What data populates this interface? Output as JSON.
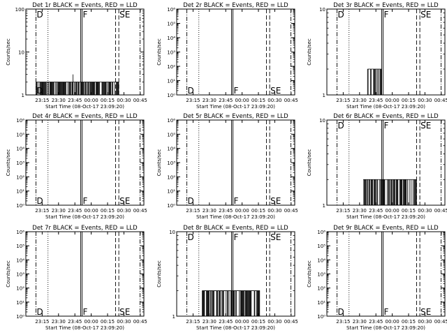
{
  "figure": {
    "start_time_label": "Start Time (08-Oct-17 23:09:20)",
    "y_axis_label": "Counts/sec"
  },
  "chart_data": [
    {
      "id": "det-1r",
      "type": "line",
      "title": "Det 1r BLACK = Events, RED = LLD",
      "yscale": "log",
      "ylim": [
        1,
        100
      ],
      "yticks": [
        {
          "v": 1,
          "l": "1"
        },
        {
          "v": 10,
          "l": "10"
        },
        {
          "v": 100,
          "l": "100"
        }
      ],
      "xticks": [
        "23:15",
        "23:30",
        "23:45",
        "00:00",
        "00:15",
        "00:30",
        "00:45"
      ],
      "xlim_minutes": [
        -9.33,
        99
      ],
      "markers": [
        {
          "t": 0,
          "style": "dash-dot",
          "label": "D",
          "label_pos": "both"
        },
        {
          "t": 11,
          "style": "dotted"
        },
        {
          "t": 41,
          "style": "solid"
        },
        {
          "t": 42.3,
          "style": "solid",
          "label": "F",
          "label_pos": "top"
        },
        {
          "t": 73,
          "style": "dashed"
        },
        {
          "t": 76,
          "style": "dashed",
          "label": "SE",
          "label_pos": "top"
        },
        {
          "t": 95.5,
          "style": "dash-dot"
        }
      ],
      "events": {
        "t_start": 0,
        "t_end": 76,
        "value": 2,
        "spikes": [
          {
            "t": 34,
            "v": 3
          }
        ]
      }
    },
    {
      "id": "det-2r",
      "type": "line",
      "title": "Det 2r BLACK = Events, RED = LLD",
      "yscale": "log",
      "ylim": [
        1,
        1000000
      ],
      "yticks": [
        {
          "v": 1,
          "l": "10⁰"
        },
        {
          "v": 10,
          "l": "10¹"
        },
        {
          "v": 100,
          "l": "10²"
        },
        {
          "v": 1000,
          "l": "10³"
        },
        {
          "v": 10000,
          "l": "10⁴"
        },
        {
          "v": 100000,
          "l": "10⁵"
        },
        {
          "v": 1000000,
          "l": "10⁶"
        }
      ],
      "xticks": [
        "23:15",
        "23:30",
        "23:45",
        "00:00",
        "00:15",
        "00:30",
        "00:45"
      ],
      "xlim_minutes": [
        -9.33,
        99
      ],
      "markers": [
        {
          "t": 0,
          "style": "dash-dot",
          "label": "D",
          "label_pos": "bottom"
        },
        {
          "t": 11,
          "style": "dotted"
        },
        {
          "t": 41,
          "style": "solid"
        },
        {
          "t": 42.3,
          "style": "solid",
          "label": "F",
          "label_pos": "bottom"
        },
        {
          "t": 73,
          "style": "dashed"
        },
        {
          "t": 76,
          "style": "dashed",
          "label": "SE",
          "label_pos": "bottom"
        },
        {
          "t": 95.5,
          "style": "dash-dot"
        }
      ]
    },
    {
      "id": "det-3r",
      "type": "line",
      "title": "Det 3r BLACK = Events, RED = LLD",
      "yscale": "log",
      "ylim": [
        1,
        10
      ],
      "yticks": [
        {
          "v": 1,
          "l": "1"
        },
        {
          "v": 10,
          "l": "10"
        }
      ],
      "xticks": [
        "23:15",
        "23:30",
        "23:45",
        "00:00",
        "00:15",
        "00:30",
        "00:45"
      ],
      "xlim_minutes": [
        -9.33,
        99
      ],
      "markers": [
        {
          "t": 0,
          "style": "dash-dot",
          "label": "D",
          "label_pos": "top"
        },
        {
          "t": 11,
          "style": "dotted"
        },
        {
          "t": 41,
          "style": "solid"
        },
        {
          "t": 42.3,
          "style": "solid",
          "label": "F",
          "label_pos": "top"
        },
        {
          "t": 73,
          "style": "dashed"
        },
        {
          "t": 76,
          "style": "dashed",
          "label": "SE",
          "label_pos": "top"
        },
        {
          "t": 95.5,
          "style": "dash-dot"
        }
      ],
      "events": {
        "t_start": 28,
        "t_end": 41,
        "value": 2,
        "spikes": []
      }
    },
    {
      "id": "det-4r",
      "type": "line",
      "title": "Det 4r BLACK = Events, RED = LLD",
      "yscale": "log",
      "ylim": [
        1,
        1000000
      ],
      "yticks": [
        {
          "v": 1,
          "l": "10⁰"
        },
        {
          "v": 10,
          "l": "10¹"
        },
        {
          "v": 100,
          "l": "10²"
        },
        {
          "v": 1000,
          "l": "10³"
        },
        {
          "v": 10000,
          "l": "10⁴"
        },
        {
          "v": 100000,
          "l": "10⁵"
        },
        {
          "v": 1000000,
          "l": "10⁶"
        }
      ],
      "xticks": [
        "23:15",
        "23:30",
        "23:45",
        "00:00",
        "00:15",
        "00:30",
        "00:45"
      ],
      "xlim_minutes": [
        -9.33,
        99
      ],
      "markers": [
        {
          "t": 0,
          "style": "dash-dot",
          "label": "D",
          "label_pos": "bottom"
        },
        {
          "t": 11,
          "style": "dotted"
        },
        {
          "t": 41,
          "style": "solid"
        },
        {
          "t": 42.3,
          "style": "solid",
          "label": "F",
          "label_pos": "bottom"
        },
        {
          "t": 73,
          "style": "dashed"
        },
        {
          "t": 76,
          "style": "dashed",
          "label": "SE",
          "label_pos": "bottom"
        },
        {
          "t": 95.5,
          "style": "dash-dot"
        }
      ]
    },
    {
      "id": "det-5r",
      "type": "line",
      "title": "Det 5r BLACK = Events, RED = LLD",
      "yscale": "log",
      "ylim": [
        1,
        1000000
      ],
      "yticks": [
        {
          "v": 1,
          "l": "10⁰"
        },
        {
          "v": 10,
          "l": "10¹"
        },
        {
          "v": 100,
          "l": "10²"
        },
        {
          "v": 1000,
          "l": "10³"
        },
        {
          "v": 10000,
          "l": "10⁴"
        },
        {
          "v": 100000,
          "l": "10⁵"
        },
        {
          "v": 1000000,
          "l": "10⁶"
        }
      ],
      "xticks": [
        "23:15",
        "23:30",
        "23:45",
        "00:00",
        "00:15",
        "00:30",
        "00:45"
      ],
      "xlim_minutes": [
        -9.33,
        99
      ],
      "markers": [
        {
          "t": 0,
          "style": "dash-dot",
          "label": "D",
          "label_pos": "bottom"
        },
        {
          "t": 11,
          "style": "dotted"
        },
        {
          "t": 41,
          "style": "solid"
        },
        {
          "t": 42.3,
          "style": "solid",
          "label": "F",
          "label_pos": "bottom"
        },
        {
          "t": 73,
          "style": "dashed"
        },
        {
          "t": 76,
          "style": "dashed",
          "label": "SE",
          "label_pos": "bottom"
        },
        {
          "t": 95.5,
          "style": "dash-dot"
        }
      ]
    },
    {
      "id": "det-6r",
      "type": "line",
      "title": "Det 6r BLACK = Events, RED = LLD",
      "yscale": "log",
      "ylim": [
        1,
        10
      ],
      "yticks": [
        {
          "v": 1,
          "l": "1"
        },
        {
          "v": 10,
          "l": "10"
        }
      ],
      "xticks": [
        "23:15",
        "23:30",
        "23:45",
        "00:00",
        "00:15",
        "00:30",
        "00:45"
      ],
      "xlim_minutes": [
        -9.33,
        99
      ],
      "markers": [
        {
          "t": 0,
          "style": "dash-dot",
          "label": "D",
          "label_pos": "top"
        },
        {
          "t": 11,
          "style": "dotted"
        },
        {
          "t": 41,
          "style": "solid"
        },
        {
          "t": 42.3,
          "style": "solid",
          "label": "F",
          "label_pos": "top"
        },
        {
          "t": 73,
          "style": "dashed"
        },
        {
          "t": 76,
          "style": "dashed",
          "label": "SE",
          "label_pos": "top"
        },
        {
          "t": 95.5,
          "style": "dash-dot"
        }
      ],
      "events": {
        "t_start": 24,
        "t_end": 73,
        "value": 2,
        "spikes": []
      }
    },
    {
      "id": "det-7r",
      "type": "line",
      "title": "Det 7r BLACK = Events, RED = LLD",
      "yscale": "log",
      "ylim": [
        1,
        1000000
      ],
      "yticks": [
        {
          "v": 1,
          "l": "10⁰"
        },
        {
          "v": 10,
          "l": "10¹"
        },
        {
          "v": 100,
          "l": "10²"
        },
        {
          "v": 1000,
          "l": "10³"
        },
        {
          "v": 10000,
          "l": "10⁴"
        },
        {
          "v": 100000,
          "l": "10⁵"
        },
        {
          "v": 1000000,
          "l": "10⁶"
        }
      ],
      "xticks": [
        "23:15",
        "23:30",
        "23:45",
        "00:00",
        "00:15",
        "00:30",
        "00:45"
      ],
      "xlim_minutes": [
        -9.33,
        99
      ],
      "markers": [
        {
          "t": 0,
          "style": "dash-dot",
          "label": "D",
          "label_pos": "bottom"
        },
        {
          "t": 11,
          "style": "dotted"
        },
        {
          "t": 41,
          "style": "solid"
        },
        {
          "t": 42.3,
          "style": "solid",
          "label": "F",
          "label_pos": "bottom"
        },
        {
          "t": 73,
          "style": "dashed"
        },
        {
          "t": 76,
          "style": "dashed",
          "label": "SE",
          "label_pos": "bottom"
        },
        {
          "t": 95.5,
          "style": "dash-dot"
        }
      ]
    },
    {
      "id": "det-8r",
      "type": "line",
      "title": "Det 8r BLACK = Events, RED = LLD",
      "yscale": "log",
      "ylim": [
        1,
        10
      ],
      "yticks": [
        {
          "v": 1,
          "l": "1"
        },
        {
          "v": 10,
          "l": "10"
        }
      ],
      "xticks": [
        "23:15",
        "23:30",
        "23:45",
        "00:00",
        "00:15",
        "00:30",
        "00:45"
      ],
      "xlim_minutes": [
        -9.33,
        99
      ],
      "markers": [
        {
          "t": 0,
          "style": "dash-dot",
          "label": "D",
          "label_pos": "top"
        },
        {
          "t": 11,
          "style": "dotted"
        },
        {
          "t": 41,
          "style": "solid"
        },
        {
          "t": 42.3,
          "style": "solid",
          "label": "F",
          "label_pos": "top"
        },
        {
          "t": 73,
          "style": "dashed"
        },
        {
          "t": 76,
          "style": "dashed",
          "label": "SE",
          "label_pos": "top"
        },
        {
          "t": 95.5,
          "style": "dash-dot"
        }
      ],
      "events": {
        "t_start": 14,
        "t_end": 67,
        "value": 2,
        "spikes": []
      }
    },
    {
      "id": "det-9r",
      "type": "line",
      "title": "Det 9r BLACK = Events, RED = LLD",
      "yscale": "log",
      "ylim": [
        1,
        1000000
      ],
      "yticks": [
        {
          "v": 1,
          "l": "10⁰"
        },
        {
          "v": 10,
          "l": "10¹"
        },
        {
          "v": 100,
          "l": "10²"
        },
        {
          "v": 1000,
          "l": "10³"
        },
        {
          "v": 10000,
          "l": "10⁴"
        },
        {
          "v": 100000,
          "l": "10⁵"
        },
        {
          "v": 1000000,
          "l": "10⁶"
        }
      ],
      "xticks": [
        "23:15",
        "23:30",
        "23:45",
        "00:00",
        "00:15",
        "00:30",
        "00:45"
      ],
      "xlim_minutes": [
        -9.33,
        99
      ],
      "markers": [
        {
          "t": 0,
          "style": "dash-dot",
          "label": "D",
          "label_pos": "bottom"
        },
        {
          "t": 11,
          "style": "dotted"
        },
        {
          "t": 41,
          "style": "solid"
        },
        {
          "t": 42.3,
          "style": "solid",
          "label": "F",
          "label_pos": "bottom"
        },
        {
          "t": 73,
          "style": "dashed"
        },
        {
          "t": 76,
          "style": "dashed",
          "label": "SE",
          "label_pos": "bottom"
        },
        {
          "t": 95.5,
          "style": "dash-dot"
        }
      ]
    }
  ]
}
